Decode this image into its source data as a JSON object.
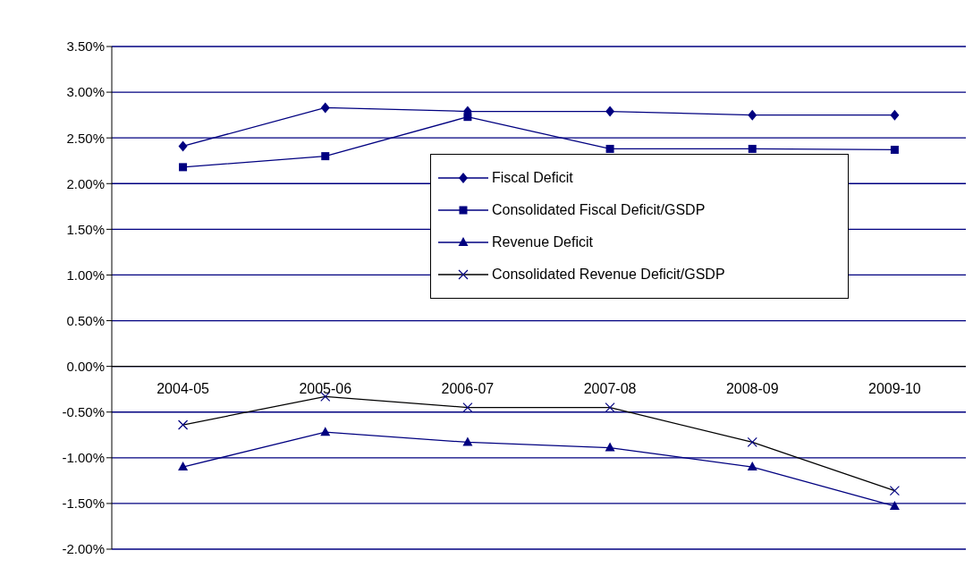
{
  "chart_data": {
    "type": "line",
    "categories": [
      "2004-05",
      "2005-06",
      "2006-07",
      "2007-08",
      "2008-09",
      "2009-10"
    ],
    "series": [
      {
        "name": "Fiscal Deficit",
        "color": "#000080",
        "marker": "diamond",
        "values": [
          2.41,
          2.83,
          2.79,
          2.79,
          2.75,
          2.75
        ]
      },
      {
        "name": "Consolidated Fiscal Deficit/GSDP",
        "color": "#000080",
        "marker": "square",
        "values": [
          2.18,
          2.3,
          2.73,
          2.38,
          2.38,
          2.37
        ]
      },
      {
        "name": "Revenue Deficit",
        "color": "#000080",
        "marker": "triangle",
        "values": [
          -1.1,
          -0.72,
          -0.83,
          -0.89,
          -1.1,
          -1.53
        ]
      },
      {
        "name": "Consolidated Revenue Deficit/GSDP",
        "color": "#000000",
        "marker": "cross",
        "values": [
          -0.64,
          -0.33,
          -0.45,
          -0.45,
          -0.83,
          -1.36
        ]
      }
    ],
    "ylim": [
      -2,
      3.5
    ],
    "yticks": [
      {
        "value": -2,
        "label": "-2.00%"
      },
      {
        "value": -1.5,
        "label": "-1.50%"
      },
      {
        "value": -1,
        "label": "-1.00%"
      },
      {
        "value": -0.5,
        "label": "-0.50%"
      },
      {
        "value": 0,
        "label": "0.00%"
      },
      {
        "value": 0.5,
        "label": "0.50%"
      },
      {
        "value": 1,
        "label": "1.00%"
      },
      {
        "value": 1.5,
        "label": "1.50%"
      },
      {
        "value": 2,
        "label": "2.00%"
      },
      {
        "value": 2.5,
        "label": "2.50%"
      },
      {
        "value": 3,
        "label": "3.00%"
      },
      {
        "value": 3.5,
        "label": "3.50%"
      }
    ],
    "grid": "y",
    "legend": "center"
  }
}
